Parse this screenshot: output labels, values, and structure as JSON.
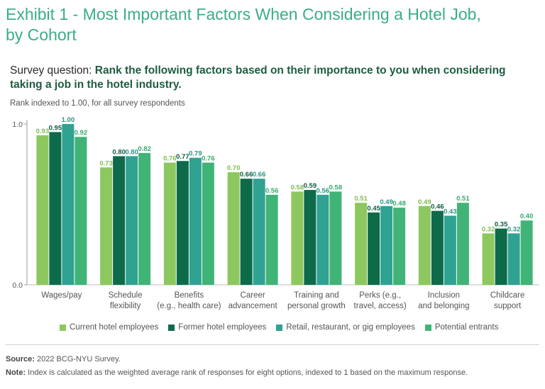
{
  "title": "Exhibit 1 - Most Important Factors When Considering a Hotel Job, by Cohort",
  "question": {
    "label": "Survey question:",
    "text": "Rank the following factors based on their importance to you when considering taking a job in the hotel industry."
  },
  "subtitle": "Rank indexed to 1.00, for all survey respondents",
  "source": {
    "label": "Source:",
    "text": "2022 BCG-NYU Survey."
  },
  "note": {
    "label": "Note:",
    "text": "Index is calculated as the weighted average rank of responses for eight options, indexed to 1 based on the maximum response."
  },
  "chart_data": {
    "type": "bar",
    "ylim": [
      0,
      1.0
    ],
    "y_ticks": [
      {
        "value": 0,
        "label": "0.0"
      },
      {
        "value": 1.0,
        "label": "1.0"
      }
    ],
    "grid": false,
    "legend_position": "bottom",
    "categories": [
      [
        "Wages/pay"
      ],
      [
        "Schedule",
        "flexibility"
      ],
      [
        "Benefits",
        "(e.g., health care)"
      ],
      [
        "Career",
        "advancement"
      ],
      [
        "Training and",
        "personal growth"
      ],
      [
        "Perks (e.g.,",
        "travel, access)"
      ],
      [
        "Inclusion",
        "and belonging"
      ],
      [
        "Childcare",
        "support"
      ]
    ],
    "series": [
      {
        "name": "Current hotel employees",
        "color": "#8cc85f",
        "label_color": "#7cbd52",
        "values": [
          0.93,
          0.73,
          0.76,
          0.7,
          0.58,
          0.51,
          0.49,
          0.32
        ],
        "labels": [
          "0.93",
          "0.73",
          "0.76",
          "0.70",
          "0.58",
          "0.51",
          "0.49",
          "0.32"
        ]
      },
      {
        "name": "Former hotel employees",
        "color": "#0d6b4a",
        "label_color": "#0d5c40",
        "values": [
          0.95,
          0.8,
          0.77,
          0.66,
          0.59,
          0.45,
          0.46,
          0.35
        ],
        "labels": [
          "0.95",
          "0.80",
          "0.77",
          "0.66",
          "0.59",
          "0.45",
          "0.46",
          "0.35"
        ]
      },
      {
        "name": "Retail, restaurant, or gig employees",
        "color": "#2fa292",
        "label_color": "#2a9584",
        "values": [
          1.0,
          0.8,
          0.79,
          0.66,
          0.56,
          0.49,
          0.43,
          0.32
        ],
        "labels": [
          "1.00",
          "0.80",
          "0.79",
          "0.66",
          "0.56",
          "0.49",
          "0.43",
          "0.32"
        ]
      },
      {
        "name": "Potential entrants",
        "color": "#40b476",
        "label_color": "#35a96a",
        "values": [
          0.92,
          0.82,
          0.76,
          0.56,
          0.58,
          0.48,
          0.51,
          0.4
        ],
        "labels": [
          "0.92",
          "0.82",
          "0.76",
          "0.56",
          "0.58",
          "0.48",
          "0.51",
          "0.40"
        ]
      }
    ]
  }
}
